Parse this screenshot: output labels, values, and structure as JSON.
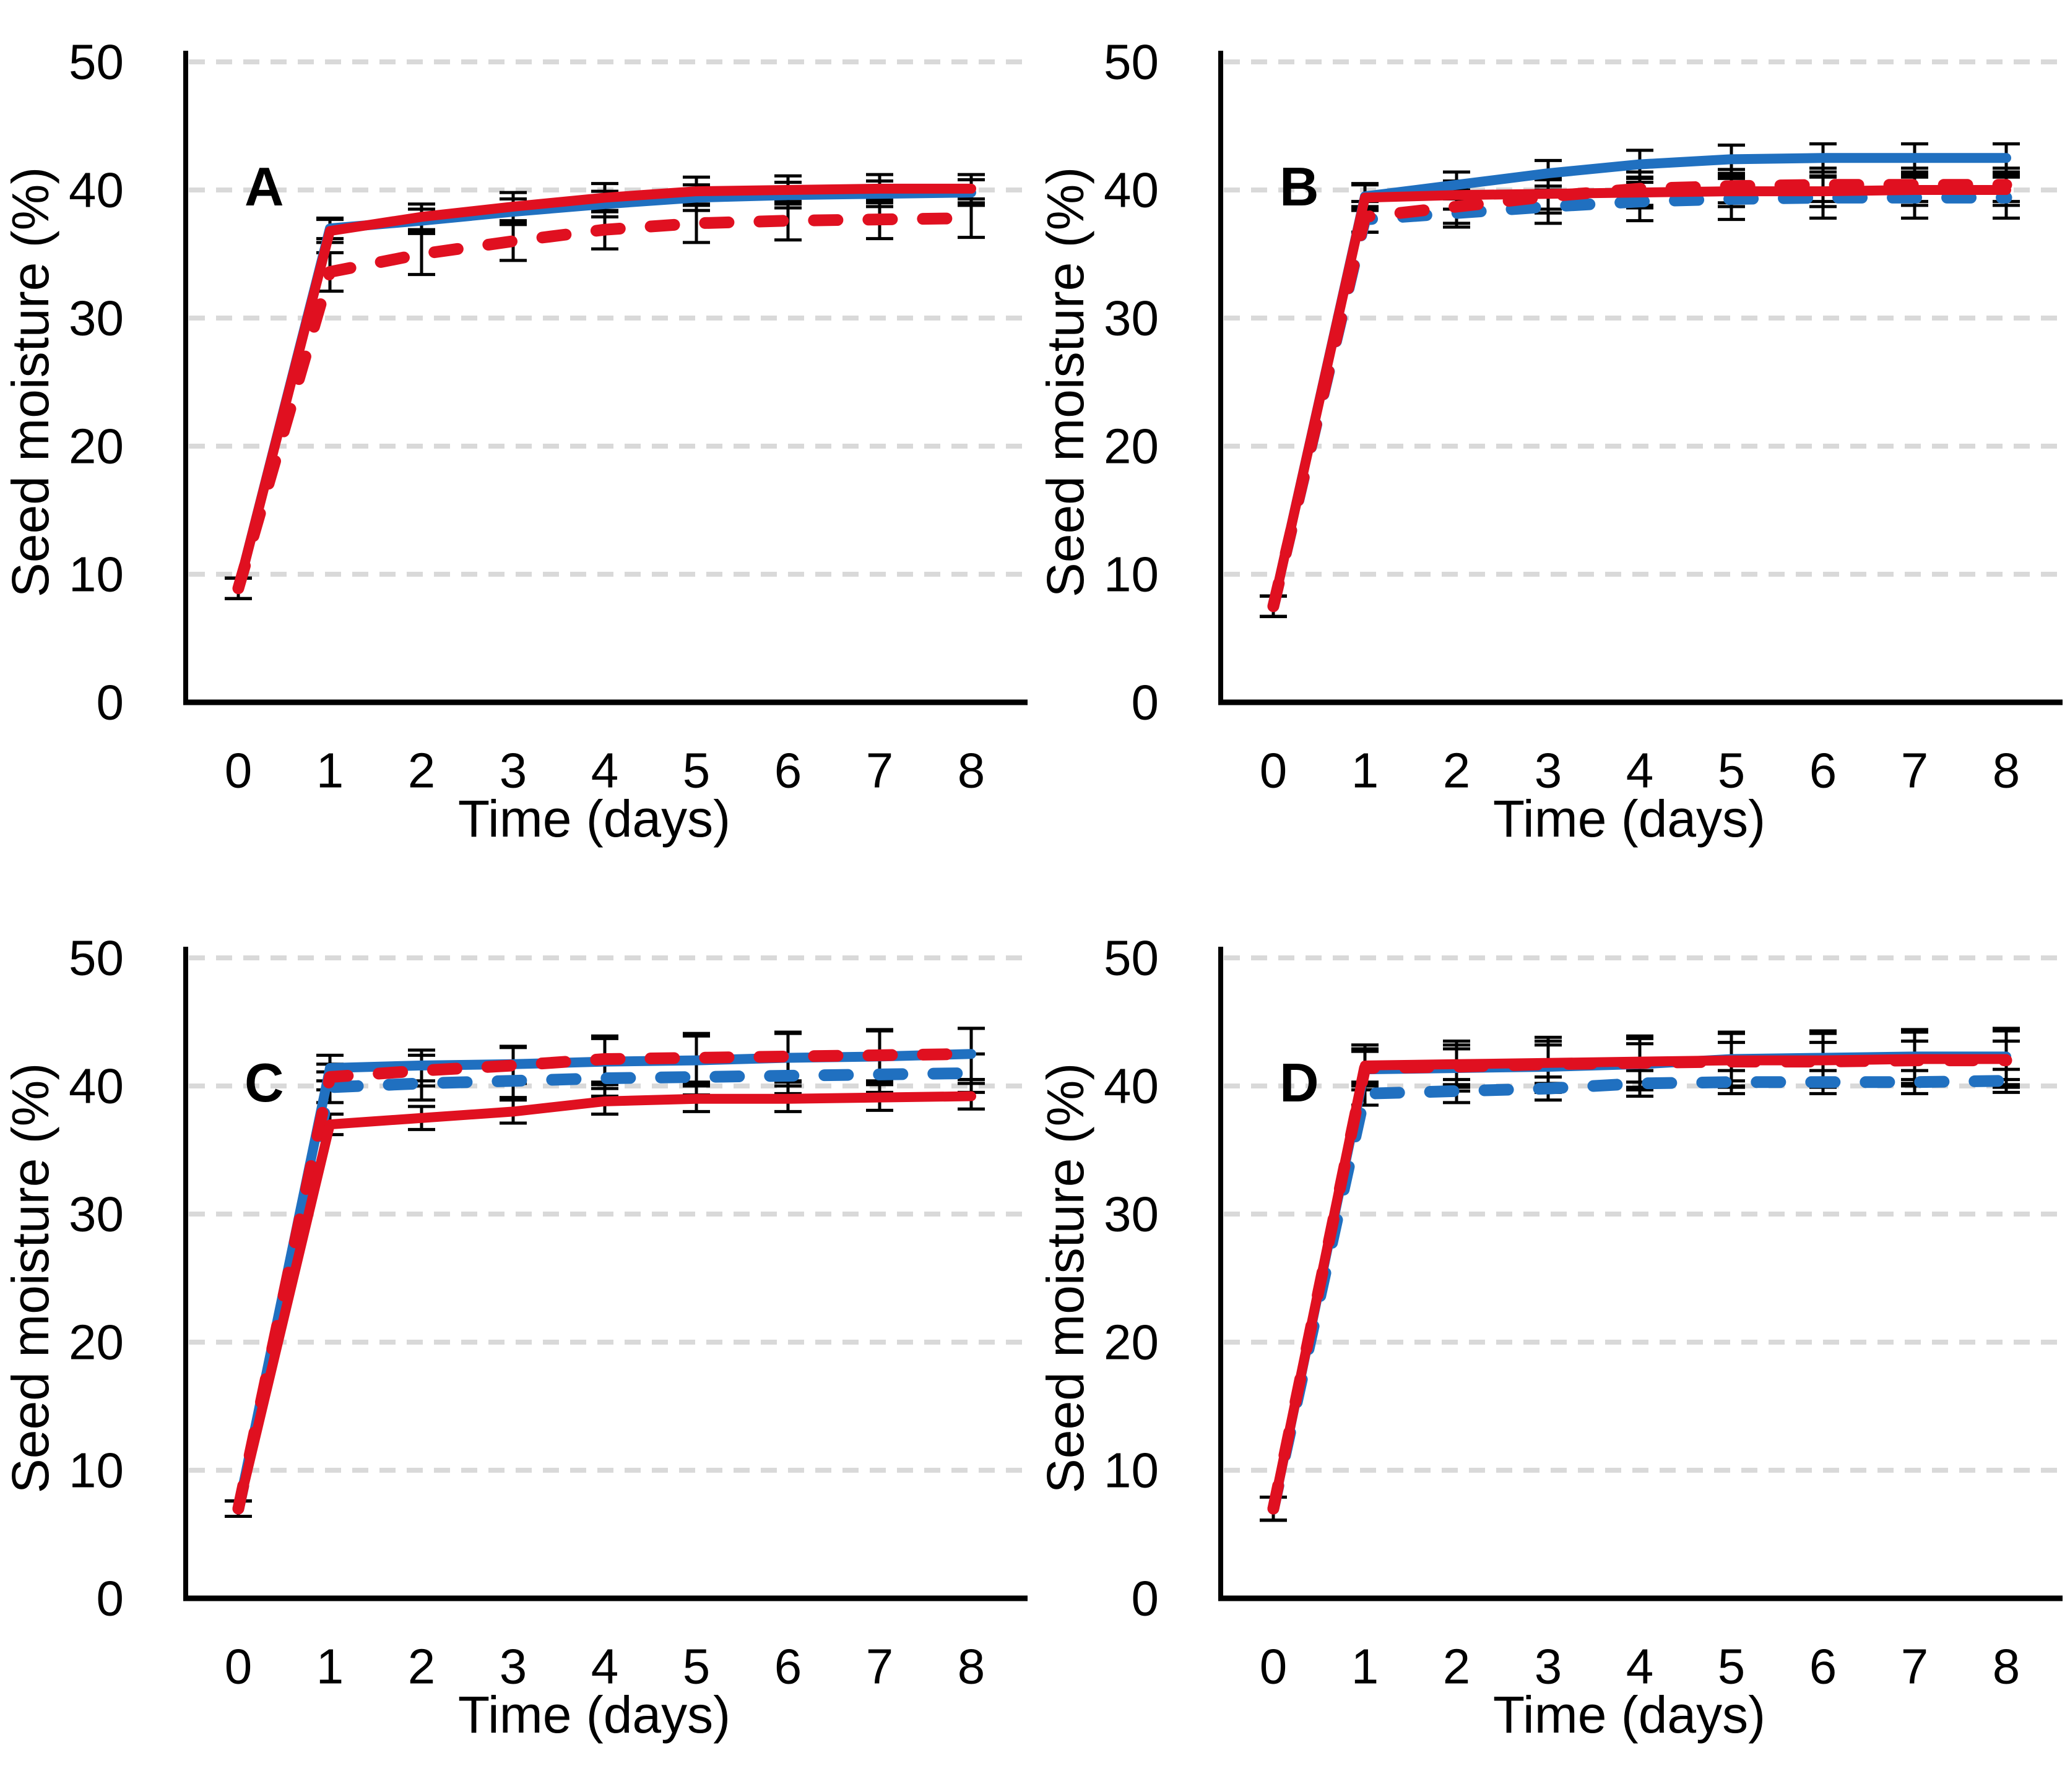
{
  "figure": {
    "type": "multi-panel-line-figure",
    "background": "#FFFFFF",
    "panel_labels": [
      "A",
      "B",
      "C",
      "D"
    ],
    "legend": "none",
    "title": ""
  },
  "colors": {
    "blue": "#2070C0",
    "red": "#E01020",
    "grid": "#D9D9D9",
    "axis": "#000000",
    "error_bar": "#000000"
  },
  "chart_data": [
    {
      "type": "line",
      "panel_label": "A",
      "xlabel": "Time (days)",
      "ylabel": "Seed moisture (%)",
      "x": [
        0,
        1,
        2,
        3,
        4,
        5,
        6,
        7,
        8
      ],
      "xticks": [
        0,
        1,
        2,
        3,
        4,
        5,
        6,
        7,
        8
      ],
      "yticks": [
        0,
        10,
        20,
        30,
        40,
        50
      ],
      "ylim": [
        0,
        50
      ],
      "grid": "horizontal-dashed",
      "series": [
        {
          "name": "blue-solid",
          "color": "blue",
          "style": "solid",
          "values": [
            8.9,
            37.0,
            37.6,
            38.3,
            38.9,
            39.4,
            39.6,
            39.7,
            39.8
          ],
          "err": [
            0.8,
            0.8,
            0.9,
            1.0,
            1.0,
            1.0,
            1.0,
            1.0,
            1.0
          ]
        },
        {
          "name": "red-solid",
          "color": "red",
          "style": "solid",
          "values": [
            8.9,
            36.8,
            37.9,
            38.7,
            39.4,
            39.9,
            40.0,
            40.1,
            40.1
          ],
          "err": [
            0.8,
            0.9,
            1.0,
            1.1,
            1.1,
            1.1,
            1.1,
            1.1,
            1.1
          ]
        },
        {
          "name": "red-dashed",
          "color": "red",
          "style": "dashed",
          "values": [
            8.9,
            33.6,
            35.0,
            36.0,
            36.9,
            37.4,
            37.6,
            37.7,
            37.8
          ],
          "err": [
            0.8,
            1.5,
            1.6,
            1.5,
            1.5,
            1.5,
            1.5,
            1.5,
            1.5
          ]
        }
      ]
    },
    {
      "type": "line",
      "panel_label": "B",
      "xlabel": "Time (days)",
      "ylabel": "Seed moisture (%)",
      "x": [
        0,
        1,
        2,
        3,
        4,
        5,
        6,
        7,
        8
      ],
      "xticks": [
        0,
        1,
        2,
        3,
        4,
        5,
        6,
        7,
        8
      ],
      "yticks": [
        0,
        10,
        20,
        30,
        40,
        50
      ],
      "ylim": [
        0,
        50
      ],
      "grid": "horizontal-dashed",
      "series": [
        {
          "name": "blue-dashed",
          "color": "blue",
          "style": "dashed",
          "values": [
            7.5,
            37.7,
            38.2,
            38.7,
            39.1,
            39.3,
            39.4,
            39.4,
            39.4
          ],
          "err": [
            0.8,
            1.0,
            1.1,
            1.3,
            1.5,
            1.6,
            1.6,
            1.6,
            1.6
          ]
        },
        {
          "name": "blue-solid",
          "color": "blue",
          "style": "solid",
          "values": [
            7.5,
            39.5,
            40.4,
            41.3,
            42.0,
            42.4,
            42.5,
            42.5,
            42.5
          ],
          "err": [
            0.8,
            1.0,
            1.0,
            1.0,
            1.1,
            1.1,
            1.1,
            1.1,
            1.1
          ]
        },
        {
          "name": "red-solid",
          "color": "red",
          "style": "solid",
          "values": [
            7.5,
            39.4,
            39.6,
            39.7,
            39.8,
            39.9,
            39.9,
            40.0,
            40.0
          ],
          "err": [
            0.8,
            1.0,
            1.1,
            1.2,
            1.2,
            1.2,
            1.2,
            1.2,
            1.2
          ]
        },
        {
          "name": "red-dashed",
          "color": "red",
          "style": "dashed",
          "values": [
            7.5,
            37.9,
            38.7,
            39.5,
            40.1,
            40.3,
            40.4,
            40.4,
            40.4
          ],
          "err": [
            0.8,
            1.2,
            1.3,
            1.3,
            1.3,
            1.3,
            1.3,
            1.3,
            1.3
          ]
        }
      ]
    },
    {
      "type": "line",
      "panel_label": "C",
      "xlabel": "Time (days)",
      "ylabel": "Seed moisture (%)",
      "x": [
        0,
        1,
        2,
        3,
        4,
        5,
        6,
        7,
        8
      ],
      "xticks": [
        0,
        1,
        2,
        3,
        4,
        5,
        6,
        7,
        8
      ],
      "yticks": [
        0,
        10,
        20,
        30,
        40,
        50
      ],
      "ylim": [
        0,
        50
      ],
      "grid": "horizontal-dashed",
      "series": [
        {
          "name": "blue-dashed",
          "color": "blue",
          "style": "dashed",
          "values": [
            7.0,
            39.9,
            40.2,
            40.4,
            40.6,
            40.7,
            40.8,
            40.9,
            41.0
          ],
          "err": [
            0.6,
            1.2,
            1.3,
            1.3,
            1.4,
            1.4,
            1.4,
            1.4,
            1.5
          ]
        },
        {
          "name": "blue-solid",
          "color": "blue",
          "style": "solid",
          "values": [
            7.0,
            41.4,
            41.6,
            41.7,
            41.9,
            42.0,
            42.2,
            42.3,
            42.5
          ],
          "err": [
            0.6,
            1.0,
            1.2,
            1.4,
            1.8,
            1.9,
            1.9,
            2.0,
            2.0
          ]
        },
        {
          "name": "red-dashed",
          "color": "red",
          "style": "dashed",
          "values": [
            7.0,
            40.7,
            41.2,
            41.6,
            42.1,
            42.2,
            42.3,
            42.4,
            42.5
          ],
          "err": [
            0.6,
            1.0,
            1.2,
            1.4,
            1.8,
            1.9,
            1.9,
            2.0,
            2.0
          ]
        },
        {
          "name": "red-solid",
          "color": "red",
          "style": "solid",
          "values": [
            7.0,
            37.0,
            37.5,
            38.0,
            38.8,
            39.0,
            39.0,
            39.1,
            39.2
          ],
          "err": [
            0.6,
            0.8,
            0.9,
            0.9,
            1.0,
            1.0,
            1.0,
            1.0,
            1.0
          ]
        }
      ]
    },
    {
      "type": "line",
      "panel_label": "D",
      "xlabel": "Time (days)",
      "ylabel": "Seed moisture (%)",
      "x": [
        0,
        1,
        2,
        3,
        4,
        5,
        6,
        7,
        8
      ],
      "xticks": [
        0,
        1,
        2,
        3,
        4,
        5,
        6,
        7,
        8
      ],
      "yticks": [
        0,
        10,
        20,
        30,
        40,
        50
      ],
      "ylim": [
        0,
        50
      ],
      "grid": "horizontal-dashed",
      "series": [
        {
          "name": "blue-solid",
          "color": "blue",
          "style": "solid",
          "values": [
            7.0,
            41.3,
            41.4,
            41.5,
            41.7,
            42.1,
            42.2,
            42.3,
            42.3
          ],
          "err": [
            0.9,
            1.6,
            1.8,
            2.0,
            2.0,
            2.1,
            2.1,
            2.1,
            2.2
          ]
        },
        {
          "name": "blue-dashed",
          "color": "blue",
          "style": "dashed",
          "values": [
            7.0,
            39.4,
            39.6,
            39.8,
            40.2,
            40.3,
            40.3,
            40.3,
            40.4
          ],
          "err": [
            0.9,
            0.9,
            0.9,
            0.9,
            1.0,
            0.9,
            0.9,
            0.9,
            0.9
          ]
        },
        {
          "name": "red-dashed",
          "color": "red",
          "style": "dashed",
          "values": [
            7.0,
            41.4,
            41.5,
            41.7,
            41.8,
            41.9,
            41.9,
            42.0,
            42.0
          ],
          "err": [
            0.9,
            1.3,
            1.4,
            1.5,
            1.5,
            1.5,
            1.5,
            1.5,
            1.5
          ]
        },
        {
          "name": "red-solid",
          "color": "red",
          "style": "solid",
          "values": [
            7.0,
            41.6,
            41.7,
            41.8,
            41.9,
            42.0,
            42.0,
            42.1,
            42.1
          ],
          "err": [
            0.9,
            1.6,
            1.8,
            2.0,
            2.0,
            2.1,
            2.1,
            2.1,
            2.2
          ]
        }
      ]
    }
  ]
}
